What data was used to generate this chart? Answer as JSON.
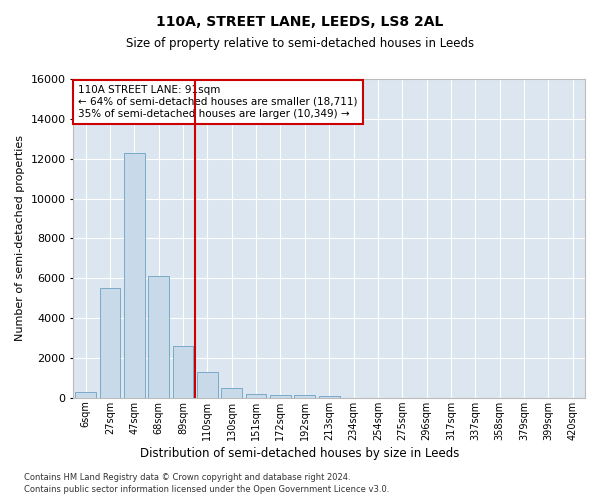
{
  "title": "110A, STREET LANE, LEEDS, LS8 2AL",
  "subtitle": "Size of property relative to semi-detached houses in Leeds",
  "xlabel": "Distribution of semi-detached houses by size in Leeds",
  "ylabel": "Number of semi-detached properties",
  "footnote1": "Contains HM Land Registry data © Crown copyright and database right 2024.",
  "footnote2": "Contains public sector information licensed under the Open Government Licence v3.0.",
  "annotation_title": "110A STREET LANE: 91sqm",
  "annotation_line1": "← 64% of semi-detached houses are smaller (18,711)",
  "annotation_line2": "35% of semi-detached houses are larger (10,349) →",
  "property_bin_index": 4,
  "bar_color": "#c8d9ea",
  "bar_edge_color": "#7aaac8",
  "vline_color": "#cc0000",
  "annotation_box_edgecolor": "#cc0000",
  "background_color": "#dce6f0",
  "categories": [
    "6sqm",
    "27sqm",
    "47sqm",
    "68sqm",
    "89sqm",
    "110sqm",
    "130sqm",
    "151sqm",
    "172sqm",
    "192sqm",
    "213sqm",
    "234sqm",
    "254sqm",
    "275sqm",
    "296sqm",
    "317sqm",
    "337sqm",
    "358sqm",
    "379sqm",
    "399sqm",
    "420sqm"
  ],
  "values": [
    300,
    5500,
    12300,
    6100,
    2600,
    1300,
    500,
    200,
    130,
    130,
    80,
    0,
    0,
    0,
    0,
    0,
    0,
    0,
    0,
    0,
    0
  ],
  "ylim": [
    0,
    16000
  ],
  "yticks": [
    0,
    2000,
    4000,
    6000,
    8000,
    10000,
    12000,
    14000,
    16000
  ],
  "figwidth": 6.0,
  "figheight": 5.0,
  "dpi": 100
}
